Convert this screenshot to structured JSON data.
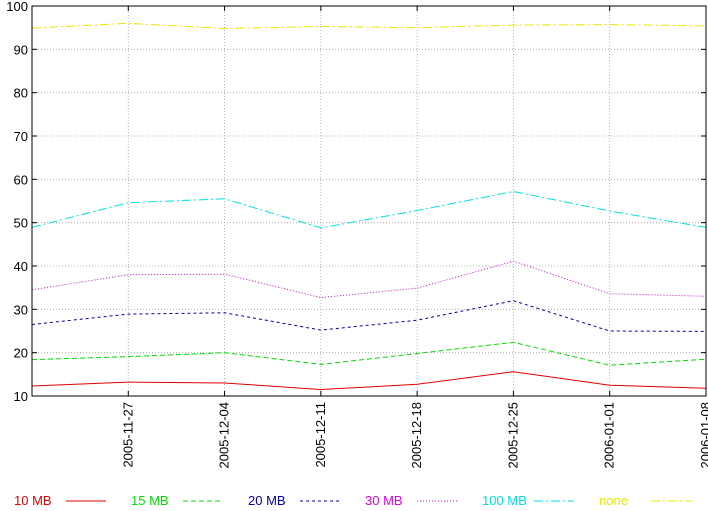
{
  "chart_data": {
    "type": "line",
    "title": "",
    "xlabel": "",
    "ylabel": "",
    "ylim": [
      10,
      100
    ],
    "yticks": [
      "10",
      "20",
      "30",
      "40",
      "50",
      "60",
      "70",
      "80",
      "90",
      "100"
    ],
    "x": [
      "2005-11-20",
      "2005-11-27",
      "2005-12-04",
      "2005-12-11",
      "2005-12-18",
      "2005-12-25",
      "2006-01-01",
      "2006-01-08"
    ],
    "xtick_labels": [
      "2005-11-27",
      "2005-12-04",
      "2005-12-11",
      "2005-12-18",
      "2005-12-25",
      "2006-01-01",
      "2006-01-08"
    ],
    "grid": true,
    "legend_position": "bottom",
    "series": [
      {
        "name": "10 MB",
        "color": "#e00000",
        "dash": "solid",
        "values": [
          12.3,
          13.2,
          13.0,
          11.5,
          12.7,
          15.6,
          12.5,
          11.8
        ]
      },
      {
        "name": "15 MB",
        "color": "#00dd00",
        "dash": "dashed",
        "values": [
          18.4,
          19.1,
          20.0,
          17.3,
          19.8,
          22.4,
          17.1,
          18.5
        ]
      },
      {
        "name": "20 MB",
        "color": "#0000a8",
        "dash": "short-dashed",
        "values": [
          26.5,
          28.9,
          29.2,
          25.2,
          27.5,
          32.0,
          25.0,
          24.9
        ]
      },
      {
        "name": "30 MB",
        "color": "#e000e0",
        "dash": "dotted",
        "values": [
          34.5,
          38.0,
          38.1,
          32.7,
          34.9,
          41.1,
          33.6,
          33.0
        ]
      },
      {
        "name": "100 MB",
        "color": "#00e0e0",
        "dash": "dash-dot",
        "values": [
          48.9,
          54.6,
          55.5,
          48.8,
          52.8,
          57.2,
          52.7,
          48.9
        ]
      },
      {
        "name": "none",
        "color": "#e8e800",
        "dash": "dash-dot",
        "values": [
          94.9,
          96.0,
          94.8,
          95.3,
          95.0,
          95.6,
          95.7,
          95.4
        ]
      }
    ]
  }
}
